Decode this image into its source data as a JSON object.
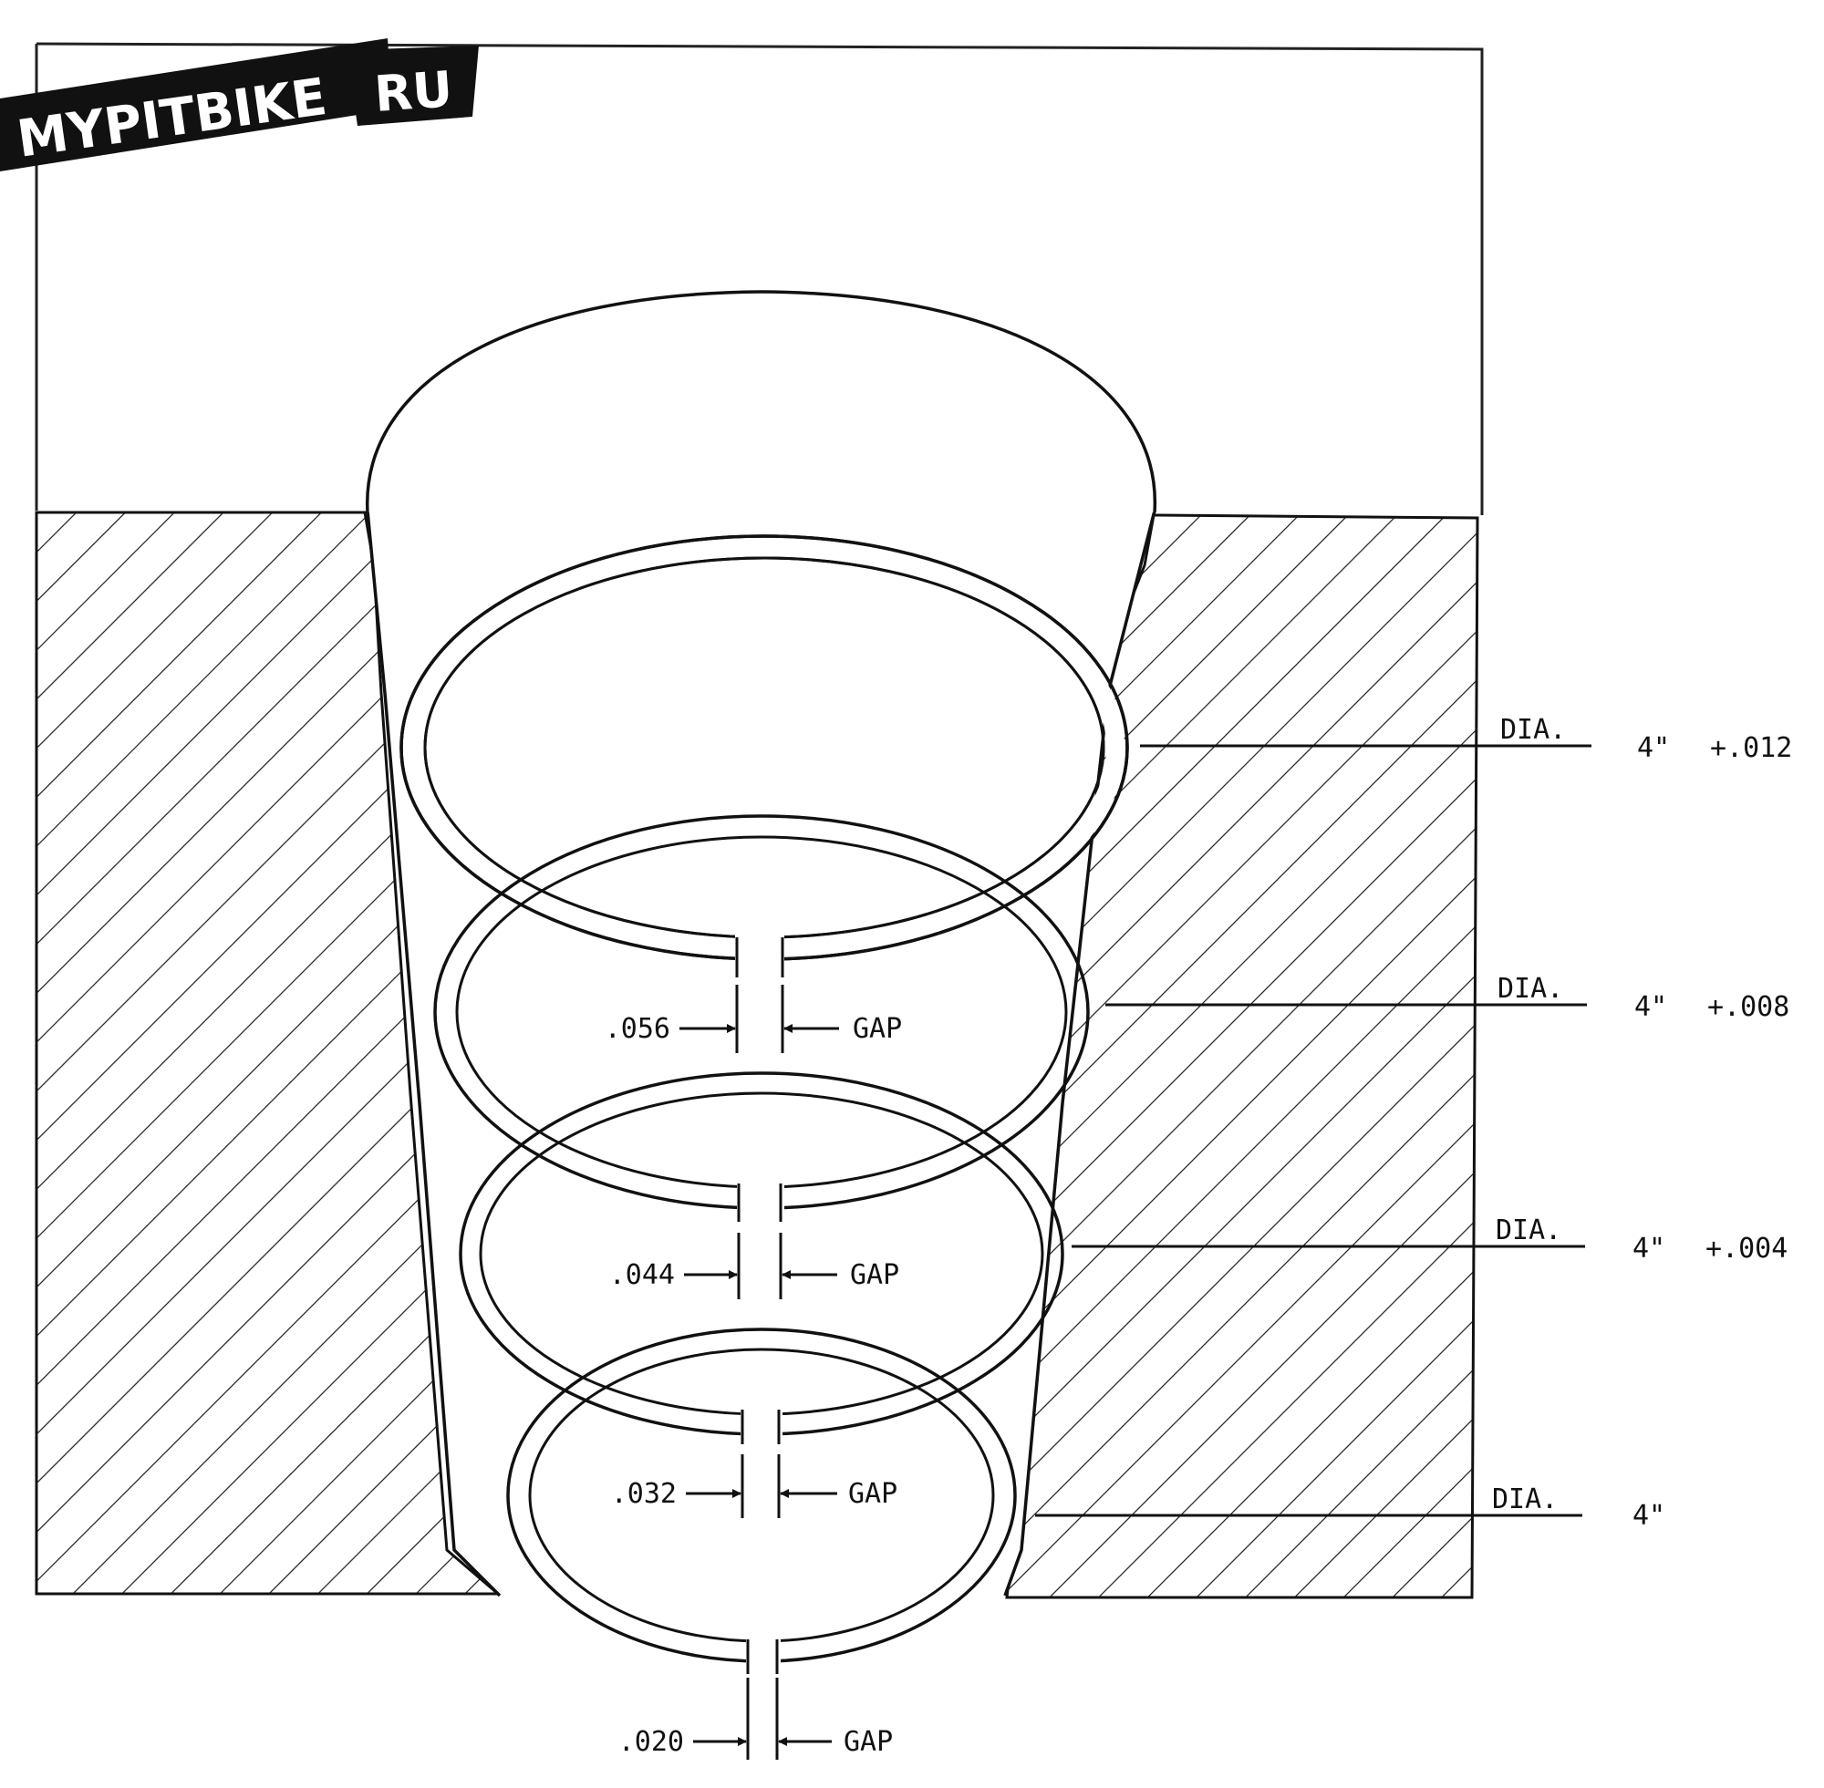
{
  "logo": {
    "left": "MYPITBIKE",
    "right": "RU"
  },
  "gaps": [
    {
      "value": ".056",
      "label": "GAP"
    },
    {
      "value": ".044",
      "label": "GAP"
    },
    {
      "value": ".032",
      "label": "GAP"
    },
    {
      "value": ".020",
      "label": "GAP"
    }
  ],
  "diameters": [
    {
      "label": "DIA.",
      "size": "4\"",
      "tolerance": "+.012"
    },
    {
      "label": "DIA.",
      "size": "4\"",
      "tolerance": "+.008"
    },
    {
      "label": "DIA.",
      "size": "4\"",
      "tolerance": "+.004"
    },
    {
      "label": "DIA.",
      "size": "4\"",
      "tolerance": ""
    }
  ]
}
